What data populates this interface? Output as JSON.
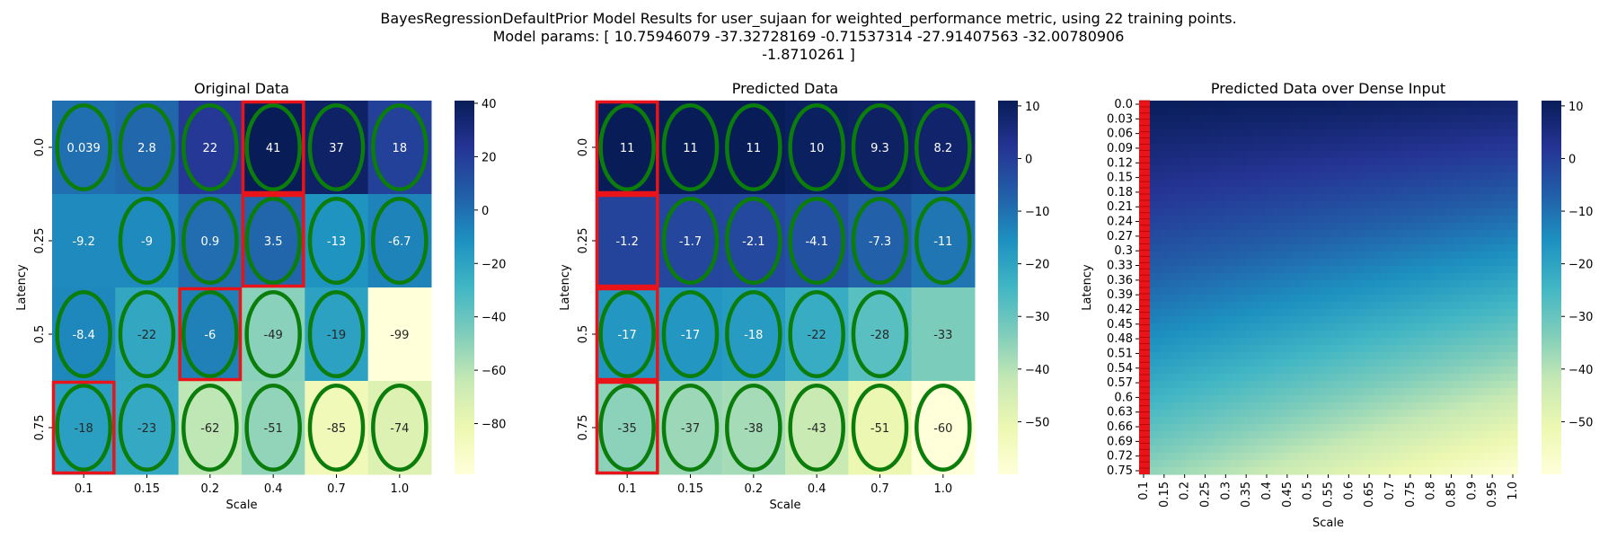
{
  "figure": {
    "title_lines": [
      "BayesRegressionDefaultPrior Model Results for user_sujaan for weighted_performance metric, using 22 training points.",
      "Model params: [ 10.75946079 -37.32728169  -0.71537314 -27.91407563 -32.00780906",
      "-1.8710261 ]"
    ]
  },
  "chart_data": [
    {
      "type": "heatmap",
      "title": "Original Data",
      "xlabel": "Scale",
      "ylabel": "Latency",
      "x_categories": [
        "0.1",
        "0.15",
        "0.2",
        "0.4",
        "0.7",
        "1.0"
      ],
      "y_categories": [
        "0.0",
        "0.25",
        "0.5",
        "0.75"
      ],
      "values": [
        [
          0.039,
          2.8,
          22,
          41,
          37,
          18
        ],
        [
          -9.2,
          -9,
          0.9,
          3.5,
          -13,
          -6.7
        ],
        [
          -8.4,
          -22,
          -6,
          -49,
          -19,
          -99
        ],
        [
          -18,
          -23,
          -62,
          -51,
          -85,
          -74
        ]
      ],
      "labels": [
        [
          "0.039",
          "2.8",
          "22",
          "41",
          "37",
          "18"
        ],
        [
          "-9.2",
          "-9",
          "0.9",
          "3.5",
          "-13",
          "-6.7"
        ],
        [
          "-8.4",
          "-22",
          "-6",
          "-49",
          "-19",
          "-99"
        ],
        [
          "-18",
          "-23",
          "-62",
          "-51",
          "-85",
          "-74"
        ]
      ],
      "color_range": [
        -99,
        41
      ],
      "colorbar_ticks": [
        40,
        20,
        0,
        -20,
        -40,
        -60,
        -80
      ],
      "ellipse_cells": [
        [
          0,
          0
        ],
        [
          0,
          1
        ],
        [
          0,
          2
        ],
        [
          0,
          3
        ],
        [
          0,
          4
        ],
        [
          0,
          5
        ],
        [
          1,
          1
        ],
        [
          1,
          2
        ],
        [
          1,
          3
        ],
        [
          1,
          4
        ],
        [
          1,
          5
        ],
        [
          2,
          0
        ],
        [
          2,
          1
        ],
        [
          2,
          2
        ],
        [
          2,
          3
        ],
        [
          2,
          4
        ],
        [
          3,
          0
        ],
        [
          3,
          1
        ],
        [
          3,
          2
        ],
        [
          3,
          3
        ],
        [
          3,
          4
        ],
        [
          3,
          5
        ]
      ],
      "red_box_cells": [
        [
          0,
          3
        ],
        [
          1,
          3
        ],
        [
          2,
          2
        ],
        [
          3,
          0
        ]
      ]
    },
    {
      "type": "heatmap",
      "title": "Predicted Data",
      "xlabel": "Scale",
      "ylabel": "Latency",
      "x_categories": [
        "0.1",
        "0.15",
        "0.2",
        "0.4",
        "0.7",
        "1.0"
      ],
      "y_categories": [
        "0.0",
        "0.25",
        "0.5",
        "0.75"
      ],
      "values": [
        [
          11,
          11,
          11,
          10,
          9.3,
          8.2
        ],
        [
          -1.2,
          -1.7,
          -2.1,
          -4.1,
          -7.3,
          -11
        ],
        [
          -17,
          -17,
          -18,
          -22,
          -28,
          -33
        ],
        [
          -35,
          -37,
          -38,
          -43,
          -51,
          -60
        ]
      ],
      "labels": [
        [
          "11",
          "11",
          "11",
          "10",
          "9.3",
          "8.2"
        ],
        [
          "-1.2",
          "-1.7",
          "-2.1",
          "-4.1",
          "-7.3",
          "-11"
        ],
        [
          "-17",
          "-17",
          "-18",
          "-22",
          "-28",
          "-33"
        ],
        [
          "-35",
          "-37",
          "-38",
          "-43",
          "-51",
          "-60"
        ]
      ],
      "color_range": [
        -60,
        11
      ],
      "colorbar_ticks": [
        10,
        0,
        -10,
        -20,
        -30,
        -40,
        -50
      ],
      "ellipse_cells": [
        [
          0,
          0
        ],
        [
          0,
          1
        ],
        [
          0,
          2
        ],
        [
          0,
          3
        ],
        [
          0,
          4
        ],
        [
          0,
          5
        ],
        [
          1,
          1
        ],
        [
          1,
          2
        ],
        [
          1,
          3
        ],
        [
          1,
          4
        ],
        [
          1,
          5
        ],
        [
          2,
          0
        ],
        [
          2,
          1
        ],
        [
          2,
          2
        ],
        [
          2,
          3
        ],
        [
          2,
          4
        ],
        [
          3,
          0
        ],
        [
          3,
          1
        ],
        [
          3,
          2
        ],
        [
          3,
          3
        ],
        [
          3,
          4
        ],
        [
          3,
          5
        ]
      ],
      "red_box_cells": [
        [
          0,
          0
        ],
        [
          1,
          0
        ],
        [
          2,
          0
        ],
        [
          3,
          0
        ]
      ]
    },
    {
      "type": "heatmap",
      "title": "Predicted Data over Dense Input",
      "xlabel": "Scale",
      "ylabel": "Latency",
      "x_ticks": [
        "0.1",
        "0.15",
        "0.2",
        "0.25",
        "0.3",
        "0.35",
        "0.4",
        "0.45",
        "0.5",
        "0.55",
        "0.6",
        "0.65",
        "0.7",
        "0.75",
        "0.8",
        "0.85",
        "0.9",
        "0.95",
        "1.0"
      ],
      "y_ticks": [
        "0.0",
        "0.03",
        "0.06",
        "0.09",
        "0.12",
        "0.15",
        "0.18",
        "0.21",
        "0.24",
        "0.27",
        "0.3",
        "0.33",
        "0.36",
        "0.39",
        "0.42",
        "0.45",
        "0.48",
        "0.51",
        "0.54",
        "0.57",
        "0.6",
        "0.63",
        "0.66",
        "0.69",
        "0.72",
        "0.75"
      ],
      "color_range": [
        -60,
        11
      ],
      "colorbar_ticks": [
        10,
        0,
        -10,
        -20,
        -30,
        -40,
        -50
      ],
      "red_box_column": "0.1"
    }
  ]
}
